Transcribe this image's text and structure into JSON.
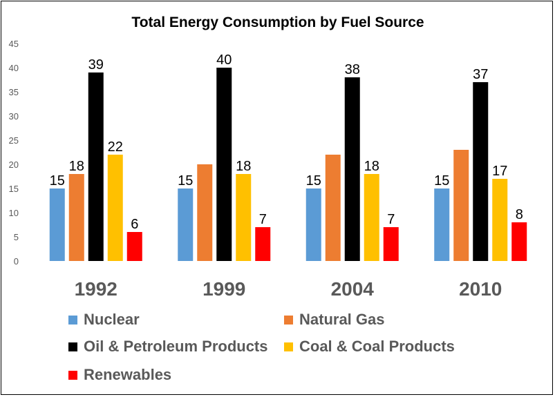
{
  "chart_data": {
    "type": "bar",
    "title": "Total Energy Consumption by Fuel Source",
    "xlabel": "",
    "ylabel": "",
    "categories": [
      "1992",
      "1999",
      "2004",
      "2010"
    ],
    "ylim": [
      0,
      45
    ],
    "yticks": [
      0,
      5,
      10,
      15,
      20,
      25,
      30,
      35,
      40,
      45
    ],
    "grid": false,
    "legend_position": "bottom",
    "series": [
      {
        "name": "Nuclear",
        "color": "#5B9BD5",
        "values": [
          15,
          15,
          15,
          15
        ],
        "labels": [
          "15",
          "15",
          "15",
          "15"
        ]
      },
      {
        "name": "Natural Gas",
        "color": "#ED7D31",
        "values": [
          18,
          20,
          22,
          23
        ],
        "labels": [
          "18",
          "",
          "",
          ""
        ]
      },
      {
        "name": "Oil & Petroleum Products",
        "color": "#000000",
        "values": [
          39,
          40,
          38,
          37
        ],
        "labels": [
          "39",
          "40",
          "38",
          "37"
        ]
      },
      {
        "name": "Coal & Coal Products",
        "color": "#FFC000",
        "values": [
          22,
          18,
          18,
          17
        ],
        "labels": [
          "22",
          "18",
          "18",
          "17"
        ]
      },
      {
        "name": "Renewables",
        "color": "#FF0000",
        "values": [
          6,
          7,
          7,
          8
        ],
        "labels": [
          "6",
          "7",
          "7",
          "8"
        ]
      }
    ]
  }
}
